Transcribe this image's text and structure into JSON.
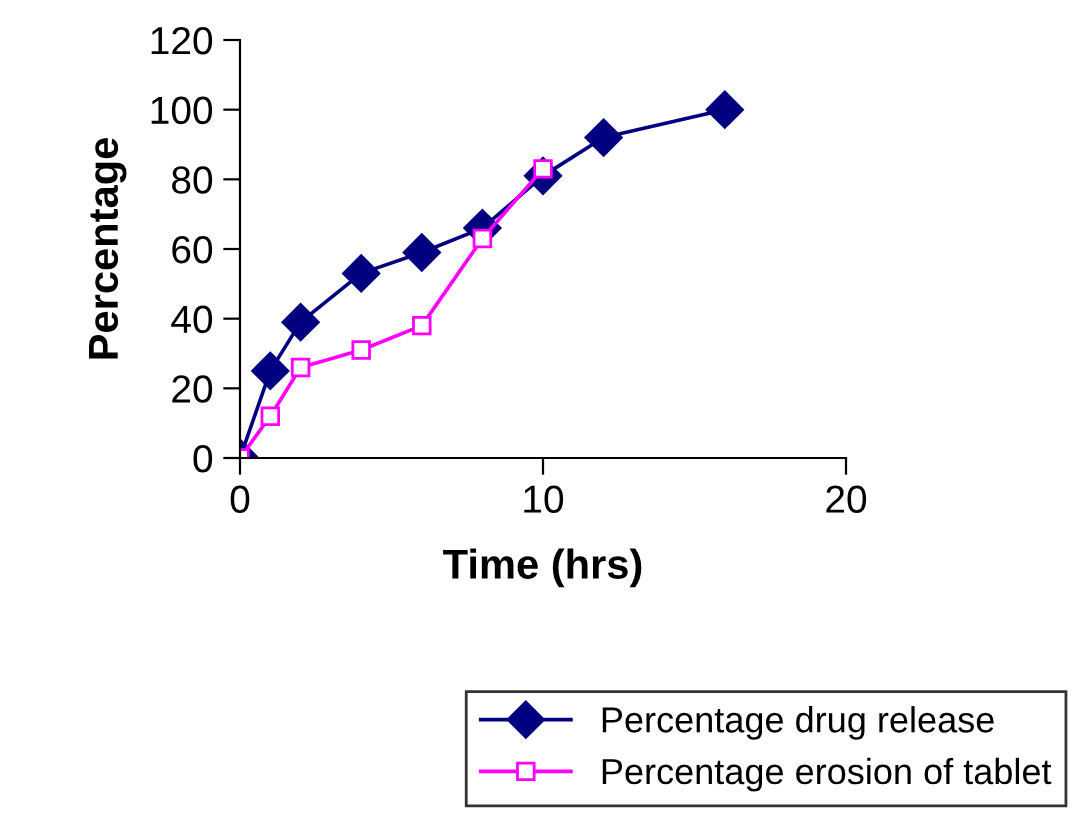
{
  "chart_data": {
    "type": "line",
    "xlabel": "Time (hrs)",
    "ylabel": "Percentage",
    "xlim": [
      0,
      20
    ],
    "xticks": [
      0,
      10,
      20
    ],
    "ylim": [
      0,
      120
    ],
    "yticks": [
      0,
      20,
      40,
      60,
      80,
      100,
      120
    ],
    "grid": false,
    "legend": "bottom right",
    "series": [
      {
        "name": "Percentage drug release",
        "color": "#000080",
        "marker": "diamond",
        "x": [
          0,
          1,
          2,
          4,
          6,
          8,
          10,
          12,
          16
        ],
        "values": [
          0,
          25,
          39,
          53,
          59,
          66,
          81,
          92,
          100
        ]
      },
      {
        "name": "Percentage erosion of tablet",
        "color": "#ff00ff",
        "marker": "square",
        "x": [
          0,
          1,
          2,
          4,
          6,
          8,
          10
        ],
        "values": [
          0,
          12,
          26,
          31,
          38,
          63,
          83
        ]
      }
    ]
  }
}
